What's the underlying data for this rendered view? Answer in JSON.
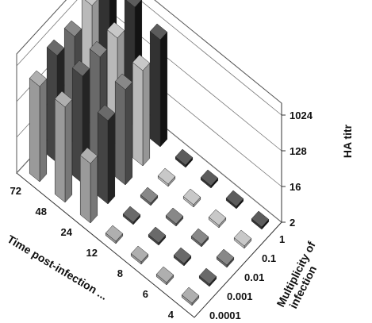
{
  "chart_data": {
    "type": "bar3d",
    "title": "",
    "zlabel": "HA titr",
    "time_axis_label": "Time post-infection ...",
    "moi_axis_label": [
      "Multiplicity of",
      "infection"
    ],
    "z_ticks": [
      "2",
      "16",
      "128",
      "1024"
    ],
    "z_scale": "log2",
    "zlim": [
      2,
      2048
    ],
    "time_categories": [
      "72",
      "48",
      "24",
      "12",
      "8",
      "6",
      "4"
    ],
    "moi_categories": [
      "0.0001",
      "0.001",
      "0.01",
      "0.1",
      "1"
    ],
    "series": [
      {
        "name": "0.0001",
        "color": "#8c8c8c",
        "values": [
          512,
          512,
          64,
          2,
          2,
          2,
          2
        ]
      },
      {
        "name": "0.001",
        "color": "#2a2a2a",
        "values": [
          1024,
          1024,
          256,
          2,
          2,
          2,
          2
        ]
      },
      {
        "name": "0.01",
        "color": "#555555",
        "values": [
          1024,
          1024,
          512,
          2,
          2,
          2,
          2
        ]
      },
      {
        "name": "0.1",
        "color": "#b0b0b0",
        "values": [
          2048,
          1024,
          512,
          2,
          2,
          2,
          2
        ]
      },
      {
        "name": "1",
        "color": "#161616",
        "values": [
          2048,
          2048,
          1024,
          2,
          2,
          2,
          2
        ]
      }
    ]
  }
}
